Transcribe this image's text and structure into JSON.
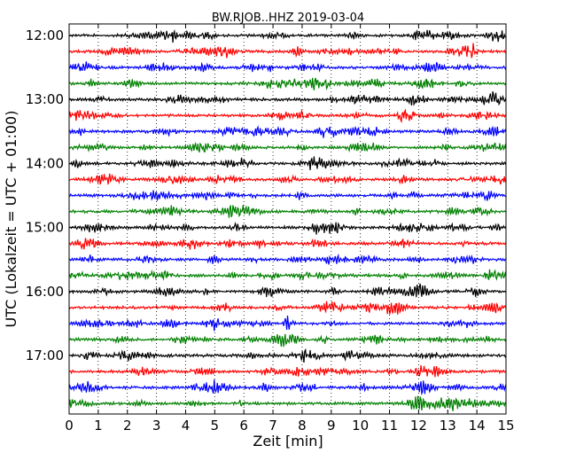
{
  "chart_data": {
    "type": "line",
    "title": "BW.RJOB..HHZ 2019-03-04",
    "xlabel": "Zeit  [min]",
    "ylabel": "UTC (Lokalzeit = UTC + 01:00)",
    "xlim": [
      0,
      15
    ],
    "x_ticks": [
      0,
      1,
      2,
      3,
      4,
      5,
      6,
      7,
      8,
      9,
      10,
      11,
      12,
      13,
      14,
      15
    ],
    "y_tick_labels": [
      "12:00",
      "13:00",
      "14:00",
      "15:00",
      "16:00",
      "17:00"
    ],
    "grid": "vertical dotted",
    "trace_interval_minutes": 15,
    "trace_colors": [
      "#000000",
      "#ff0000",
      "#0000ff",
      "#008000"
    ],
    "trace_rows": [
      "12:00",
      "12:15",
      "12:30",
      "12:45",
      "13:00",
      "13:15",
      "13:30",
      "13:45",
      "14:00",
      "14:15",
      "14:30",
      "14:45",
      "15:00",
      "15:15",
      "15:30",
      "15:45",
      "16:00",
      "16:15",
      "16:30",
      "16:45",
      "17:00",
      "17:15",
      "17:30",
      "17:45"
    ]
  }
}
